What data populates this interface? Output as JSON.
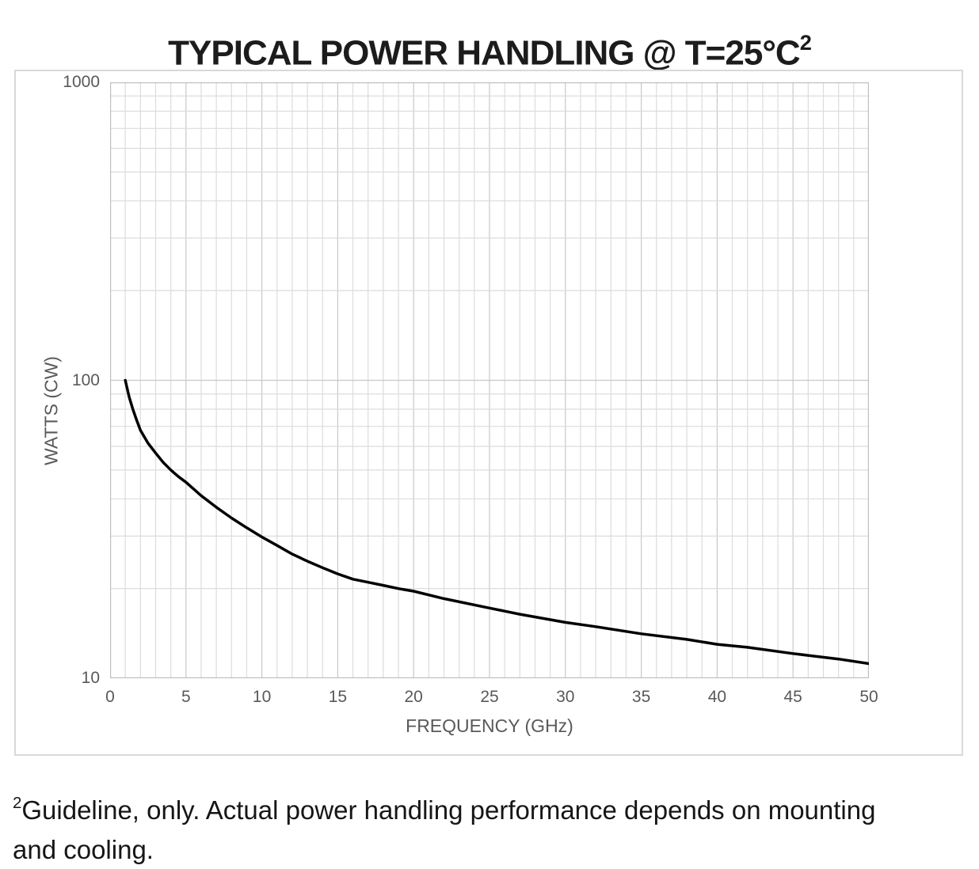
{
  "page": {
    "title": {
      "text": "TYPICAL POWER HANDLING @ T=25°C",
      "superscript": "2"
    },
    "footnote": {
      "superscript": "2",
      "text": "Guideline, only.  Actual power handling performance depends on mounting and cooling."
    }
  },
  "chart_data": {
    "type": "line",
    "title": "TYPICAL POWER HANDLING @ T=25°C²",
    "xlabel": "FREQUENCY (GHz)",
    "ylabel": "WATTS (CW)",
    "legend": "none",
    "grid": "on",
    "x_axis": {
      "scale": "linear",
      "min": 0,
      "max": 50,
      "tick_labels": [
        0,
        5,
        10,
        15,
        20,
        25,
        30,
        35,
        40,
        45,
        50
      ],
      "minor_grid_step": 1,
      "major_grid_step": 5
    },
    "y_axis": {
      "scale": "log",
      "min": 10,
      "max": 1000,
      "tick_labels": [
        1000,
        100,
        10
      ],
      "grid_values": [
        20,
        30,
        40,
        50,
        60,
        70,
        80,
        90,
        100,
        200,
        300,
        400,
        500,
        600,
        700,
        800,
        900
      ]
    },
    "series": [
      {
        "name": "typical-power-handling",
        "color": "#000000",
        "points": [
          [
            1,
            100
          ],
          [
            1.25,
            88
          ],
          [
            1.5,
            80
          ],
          [
            1.75,
            73.5
          ],
          [
            2,
            68
          ],
          [
            2.5,
            61.5
          ],
          [
            3,
            57
          ],
          [
            3.5,
            53
          ],
          [
            4,
            50
          ],
          [
            4.5,
            47.5
          ],
          [
            5,
            45.5
          ],
          [
            6,
            41
          ],
          [
            7,
            37.5
          ],
          [
            8,
            34.5
          ],
          [
            9,
            32
          ],
          [
            10,
            29.8
          ],
          [
            11,
            27.9
          ],
          [
            12,
            26.1
          ],
          [
            13,
            24.7
          ],
          [
            14,
            23.5
          ],
          [
            15,
            22.4
          ],
          [
            16,
            21.5
          ],
          [
            17,
            21
          ],
          [
            18,
            20.5
          ],
          [
            19,
            20
          ],
          [
            20,
            19.6
          ],
          [
            22,
            18.5
          ],
          [
            25,
            17.2
          ],
          [
            27,
            16.4
          ],
          [
            30,
            15.4
          ],
          [
            32,
            14.9
          ],
          [
            35,
            14.1
          ],
          [
            38,
            13.5
          ],
          [
            40,
            13
          ],
          [
            42,
            12.7
          ],
          [
            45,
            12.1
          ],
          [
            48,
            11.6
          ],
          [
            50,
            11.2
          ]
        ]
      }
    ],
    "style": {
      "minor_grid_color": "#dcdcdc",
      "major_grid_color": "#c8c8c8",
      "axis_line_color": "#bfbfbf",
      "tick_label_color": "#595959",
      "curve_color": "#000000",
      "curve_width": 3.5,
      "frame_border_color": "#d9d9d9",
      "title_color": "#1c1c1c",
      "footnote_color": "#161616"
    }
  }
}
